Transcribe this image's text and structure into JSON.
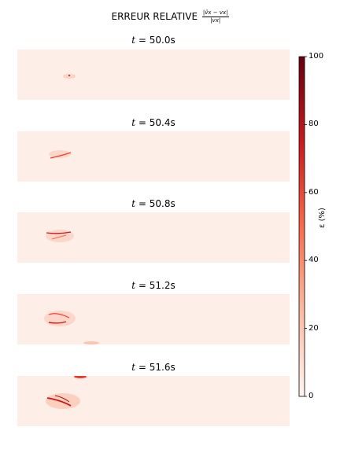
{
  "figure": {
    "title_prefix": "ERREUR RELATIVE",
    "title_fraction_numerator": "|v̂x − vx|",
    "title_fraction_denominator": "|vx|"
  },
  "chart_data": {
    "type": "heatmap",
    "panels": [
      {
        "time_label": "50.0s",
        "t": 50.0
      },
      {
        "time_label": "50.4s",
        "t": 50.4
      },
      {
        "time_label": "50.8s",
        "t": 50.8
      },
      {
        "time_label": "51.2s",
        "t": 51.2
      },
      {
        "time_label": "51.6s",
        "t": 51.6
      }
    ],
    "colorbar": {
      "label": "ε (%)",
      "range": [
        0,
        100
      ],
      "ticks": [
        "0",
        "20",
        "40",
        "60",
        "80",
        "100"
      ],
      "colormap": "Reds",
      "colors": [
        "#fff5f0",
        "#fcbba1",
        "#fb6a4a",
        "#cb181d",
        "#67000d"
      ]
    },
    "background_color": "#fdeee8"
  }
}
